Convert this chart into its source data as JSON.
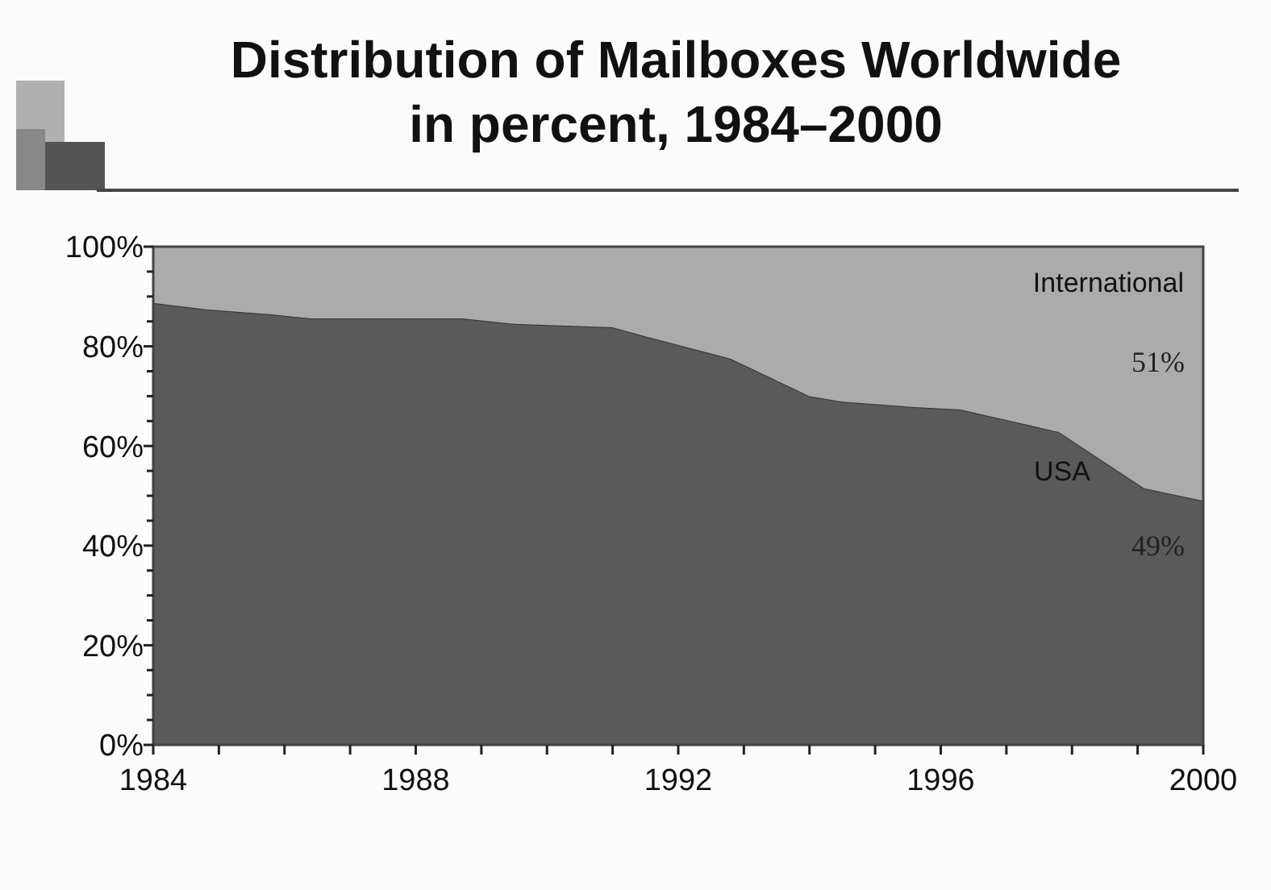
{
  "chart_data": {
    "type": "area",
    "stacked": true,
    "title": "Distribution of Mailboxes Worldwide\nin percent, 1984–2000",
    "x": [
      1984,
      1984.8,
      1985.8,
      1986.4,
      1988.7,
      1989.5,
      1991,
      1991.5,
      1992.8,
      1994,
      1994.5,
      1995.6,
      1996.3,
      1997.8,
      1999.1,
      2000
    ],
    "series": [
      {
        "name": "USA",
        "color": "#5a5a5a",
        "values": [
          88.7,
          87.4,
          86.4,
          85.6,
          85.6,
          84.5,
          83.8,
          82,
          77.5,
          70,
          68.9,
          67.8,
          67.3,
          62.8,
          51.5,
          49
        ]
      },
      {
        "name": "International",
        "color": "#ababab",
        "values": [
          11.3,
          12.6,
          13.6,
          14.4,
          14.4,
          15.5,
          16.2,
          18,
          22.5,
          30,
          31.1,
          32.2,
          32.7,
          37.2,
          48.5,
          51
        ]
      }
    ],
    "xlim": [
      1984,
      2000
    ],
    "xticks": [
      1984,
      {
        "value": 1985,
        "label": null
      },
      {
        "value": 1986,
        "label": null
      },
      {
        "value": 1987,
        "label": null
      },
      1988,
      {
        "value": 1989,
        "label": null
      },
      {
        "value": 1990,
        "label": null
      },
      {
        "value": 1991,
        "label": null
      },
      1992,
      {
        "value": 1993,
        "label": null
      },
      {
        "value": 1994,
        "label": null
      },
      {
        "value": 1995,
        "label": null
      },
      1996,
      {
        "value": 1997,
        "label": null
      },
      {
        "value": 1998,
        "label": null
      },
      {
        "value": 1999,
        "label": null
      },
      2000
    ],
    "ylim": [
      0,
      100
    ],
    "yticks": [
      {
        "value": 0,
        "label": "0%"
      },
      {
        "value": 5,
        "label": null
      },
      {
        "value": 10,
        "label": null
      },
      {
        "value": 15,
        "label": null
      },
      {
        "value": 20,
        "label": "20%"
      },
      {
        "value": 25,
        "label": null
      },
      {
        "value": 30,
        "label": null
      },
      {
        "value": 35,
        "label": null
      },
      {
        "value": 40,
        "label": "40%"
      },
      {
        "value": 45,
        "label": null
      },
      {
        "value": 50,
        "label": null
      },
      {
        "value": 55,
        "label": null
      },
      {
        "value": 60,
        "label": "60%"
      },
      {
        "value": 65,
        "label": null
      },
      {
        "value": 70,
        "label": null
      },
      {
        "value": 75,
        "label": null
      },
      {
        "value": 80,
        "label": "80%"
      },
      {
        "value": 85,
        "label": null
      },
      {
        "value": 90,
        "label": null
      },
      {
        "value": 95,
        "label": null
      },
      {
        "value": 100,
        "label": "100%"
      }
    ],
    "annotations": [
      "51%",
      "49%"
    ]
  }
}
